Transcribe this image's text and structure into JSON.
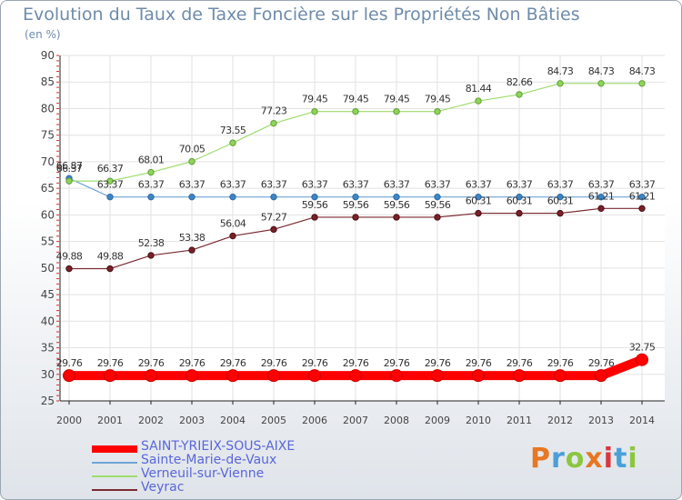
{
  "chart_data": {
    "type": "line",
    "title": "Evolution du Taux de Taxe Foncière sur les Propriétés Non Bâties",
    "unit_label": "(en %)",
    "ylim": [
      25,
      90
    ],
    "y_ticks": [
      25,
      30,
      35,
      40,
      45,
      50,
      55,
      60,
      65,
      70,
      75,
      80,
      85,
      90
    ],
    "categories": [
      "2000",
      "2001",
      "2002",
      "2003",
      "2004",
      "2005",
      "2006",
      "2007",
      "2008",
      "2009",
      "2010",
      "2011",
      "2012",
      "2013",
      "2014"
    ],
    "grid": true,
    "legend_position": "bottom-left",
    "series": [
      {
        "name": "SAINT-YRIEIX-SOUS-AIXE",
        "color": "#ff0000",
        "values": [
          29.76,
          29.76,
          29.76,
          29.76,
          29.76,
          29.76,
          29.76,
          29.76,
          29.76,
          29.76,
          29.76,
          29.76,
          29.76,
          29.76,
          32.75
        ]
      },
      {
        "name": "Sainte-Marie-de-Vaux",
        "color": "#6fa5d6",
        "values": [
          66.87,
          63.37,
          63.37,
          63.37,
          63.37,
          63.37,
          63.37,
          63.37,
          63.37,
          63.37,
          63.37,
          63.37,
          63.37,
          63.37,
          63.37
        ]
      },
      {
        "name": "Verneuil-sur-Vienne",
        "color": "#9edc6e",
        "values": [
          66.37,
          66.37,
          68.01,
          70.05,
          73.55,
          77.23,
          79.45,
          79.45,
          79.45,
          79.45,
          81.44,
          82.66,
          84.73,
          84.73,
          84.73
        ]
      },
      {
        "name": "Veyrac",
        "color": "#7a2a30",
        "values": [
          49.88,
          49.88,
          52.38,
          53.38,
          56.04,
          57.27,
          59.56,
          59.56,
          59.56,
          59.56,
          60.31,
          60.31,
          60.31,
          61.21,
          61.21
        ]
      }
    ],
    "labels": {
      "SAINT-YRIEIX-SOUS-AIXE": [
        "29.76",
        "29.76",
        "29.76",
        "29.76",
        "29.76",
        "29.76",
        "29.76",
        "29.76",
        "29.76",
        "29.76",
        "29.76",
        "29.76",
        "29.76",
        "29.76",
        "32.75"
      ],
      "Sainte-Marie-de-Vaux": [
        "66.87",
        "63.37",
        "63.37",
        "63.37",
        "63.37",
        "63.37",
        "63.37",
        "63.37",
        "63.37",
        "63.37",
        "63.37",
        "63.37",
        "63.37",
        "63.37",
        "63.37"
      ],
      "Verneuil-sur-Vienne": [
        "66.37",
        "66.37",
        "68.01",
        "70.05",
        "73.55",
        "77.23",
        "79.45",
        "79.45",
        "79.45",
        "79.45",
        "81.44",
        "82.66",
        "84.73",
        "84.73",
        "84.73"
      ],
      "Veyrac": [
        "49.88",
        "49.88",
        "52.38",
        "53.38",
        "56.04",
        "57.27",
        "59.56",
        "59.56",
        "59.56",
        "59.56",
        "60.31",
        "60.31",
        "60.31",
        "61.21",
        "61.21"
      ]
    }
  },
  "brand": {
    "text": "Proxiti",
    "colors": [
      "#e87722",
      "#4a9fd8",
      "#8cc63f",
      "#e87722",
      "#d9363e",
      "#4a9fd8",
      "#8cc63f"
    ]
  }
}
